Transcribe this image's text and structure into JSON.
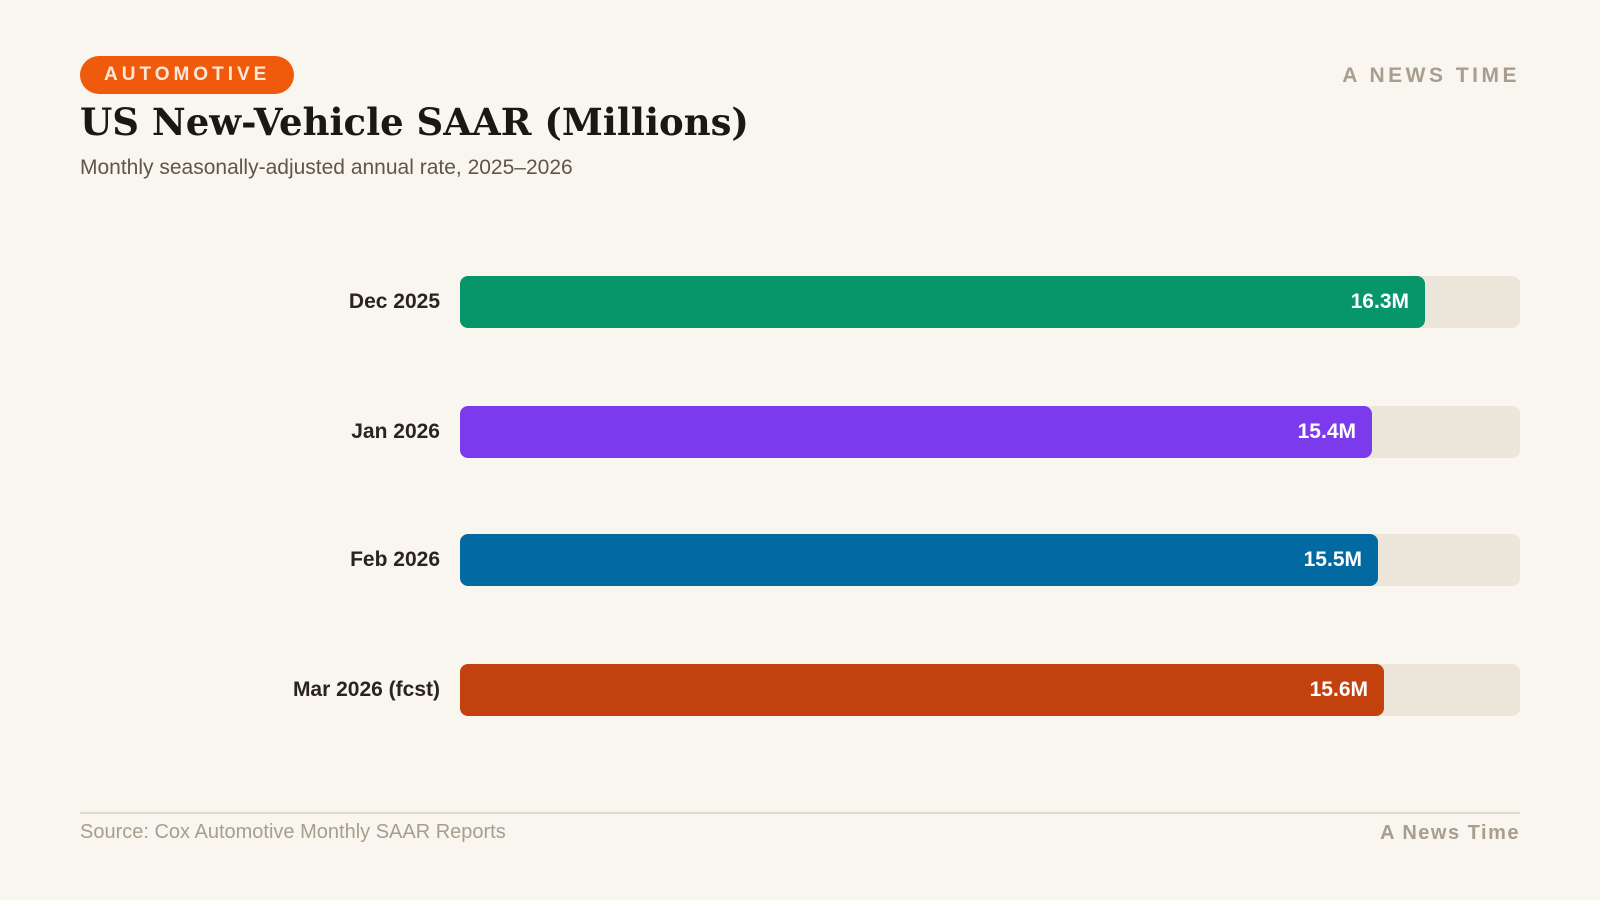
{
  "header": {
    "tag": "AUTOMOTIVE",
    "brand": "A NEWS TIME",
    "title": "US New-Vehicle SAAR (Millions)",
    "subtitle": "Monthly seasonally-adjusted annual rate, 2025–2026"
  },
  "footer": {
    "source": "Source: Cox Automotive Monthly SAAR Reports",
    "brand": "A News Time"
  },
  "colors": {
    "accent": "#ef5a0c",
    "background": "#f9f5ef",
    "track": "#ece5da"
  },
  "chart_data": {
    "type": "bar",
    "orientation": "horizontal",
    "title": "US New-Vehicle SAAR (Millions)",
    "subtitle": "Monthly seasonally-adjusted annual rate, 2025–2026",
    "categories": [
      "Dec 2025",
      "Jan 2026",
      "Feb 2026",
      "Mar 2026 (fcst)"
    ],
    "values": [
      16.3,
      15.4,
      15.5,
      15.6
    ],
    "value_labels": [
      "16.3M",
      "15.4M",
      "15.5M",
      "15.6M"
    ],
    "colors": [
      "#069669",
      "#7c3aed",
      "#0369a1",
      "#c2410c"
    ],
    "xlim": [
      0,
      17.9
    ],
    "grid": false,
    "legend": "none"
  }
}
